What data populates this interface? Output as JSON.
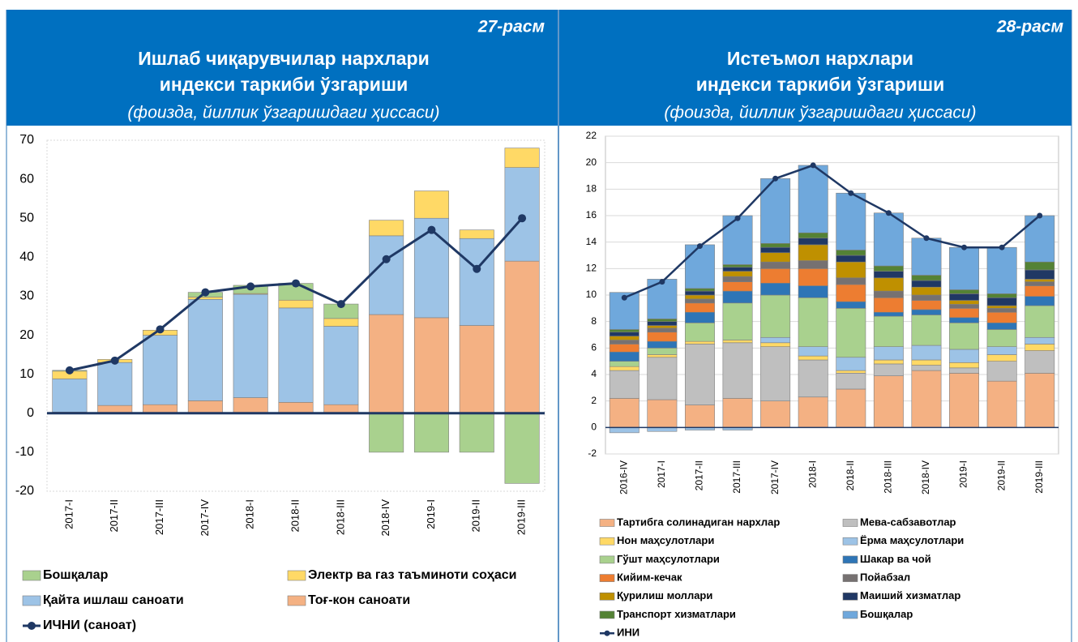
{
  "chart_data": [
    {
      "type": "bar",
      "stacked": true,
      "grid": false,
      "figure_label": "27-расм",
      "title": [
        "Ишлаб чиқарувчилар нархлари",
        "индекси таркиби ўзгариши"
      ],
      "subtitle": "(фоизда, йиллик ўзгаришдаги ҳиссаси)",
      "categories": [
        "2017-I",
        "2017-II",
        "2017-III",
        "2017-IV",
        "2018-I",
        "2018-II",
        "2018-III",
        "2018-IV",
        "2019-I",
        "2019-II",
        "2019-III"
      ],
      "ylim": [
        -20,
        70
      ],
      "yticks": [
        -20,
        -10,
        0,
        10,
        20,
        30,
        40,
        50,
        60,
        70
      ],
      "series": [
        {
          "name": "Тоғ-кон саноати",
          "color": "#f4b183",
          "values": [
            0.3,
            2,
            2.2,
            3.2,
            4,
            2.8,
            2.2,
            25.3,
            24.5,
            22.5,
            39
          ]
        },
        {
          "name": "Қайта ишлаш саноати",
          "color": "#9dc3e6",
          "values": [
            8.5,
            11,
            17.8,
            26,
            26.5,
            24.2,
            20.1,
            20.2,
            25.5,
            22.3,
            24
          ]
        },
        {
          "name": "Электр ва газ таъминоти соҳаси",
          "color": "#ffd966",
          "values": [
            2,
            0.8,
            1.3,
            0.6,
            0.2,
            2,
            2,
            4,
            7,
            2.2,
            5
          ]
        },
        {
          "name": "Бошқалар",
          "color": "#a9d18e",
          "values": [
            0.2,
            0,
            0,
            1.2,
            2.1,
            4.3,
            3.7,
            -10,
            -10,
            -10,
            -18
          ]
        }
      ],
      "line": {
        "name": "ИЧНИ (саноат)",
        "color": "#1f3864",
        "values": [
          11,
          13.5,
          21.5,
          31,
          32.5,
          33.3,
          28,
          39.5,
          47,
          37,
          50
        ]
      }
    },
    {
      "type": "bar",
      "stacked": true,
      "grid": true,
      "figure_label": "28-расм",
      "title": [
        "Истеъмол нархлари",
        "индекси таркиби ўзгариши"
      ],
      "subtitle": "(фоизда, йиллик ўзгаришдаги ҳиссаси)",
      "categories": [
        "2016-IV",
        "2017-I",
        "2017-II",
        "2017-III",
        "2017-IV",
        "2018-I",
        "2018-II",
        "2018-III",
        "2018-IV",
        "2019-I",
        "2019-II",
        "2019-III"
      ],
      "ylim": [
        -2,
        22
      ],
      "yticks": [
        -2,
        0,
        2,
        4,
        6,
        8,
        10,
        12,
        14,
        16,
        18,
        20,
        22
      ],
      "series": [
        {
          "name": "Тартибга солинадиган нархлар",
          "color": "#f4b183",
          "values": [
            2.2,
            2.1,
            1.7,
            2.2,
            2.0,
            2.3,
            2.9,
            3.9,
            4.3,
            4.1,
            3.5,
            4.1
          ]
        },
        {
          "name": "Мева-сабзавотлар",
          "color": "#bfbfbf",
          "values": [
            2.1,
            3.2,
            4.6,
            4.2,
            4.1,
            2.8,
            1.2,
            0.9,
            0.4,
            0.4,
            1.5,
            1.7
          ]
        },
        {
          "name": "Нон маҳсулотлари",
          "color": "#ffd966",
          "values": [
            0.3,
            0.2,
            0.2,
            0.2,
            0.3,
            0.3,
            0.2,
            0.3,
            0.4,
            0.4,
            0.5,
            0.5
          ]
        },
        {
          "name": "Ёрма маҳсулотлари",
          "color": "#9dc3e6",
          "values": [
            -0.4,
            -0.3,
            -0.2,
            -0.2,
            0.4,
            0.7,
            1.0,
            1.0,
            1.1,
            1.0,
            0.6,
            0.5
          ]
        },
        {
          "name": "Гўшт маҳсулотлари",
          "color": "#a9d18e",
          "values": [
            0.4,
            0.5,
            1.4,
            2.8,
            3.2,
            3.7,
            3.7,
            2.3,
            2.3,
            2.0,
            1.3,
            2.4
          ]
        },
        {
          "name": "Шакар ва чой",
          "color": "#2e75b6",
          "values": [
            0.7,
            0.5,
            0.8,
            0.9,
            0.9,
            0.9,
            0.5,
            0.3,
            0.4,
            0.4,
            0.5,
            0.7
          ]
        },
        {
          "name": "Кийим-кечак",
          "color": "#ed7d31",
          "values": [
            0.6,
            0.7,
            0.7,
            0.7,
            1.1,
            1.3,
            1.3,
            1.1,
            0.7,
            0.7,
            0.8,
            0.8
          ]
        },
        {
          "name": "Пойабзал",
          "color": "#767171",
          "values": [
            0.3,
            0.3,
            0.3,
            0.4,
            0.5,
            0.6,
            0.5,
            0.5,
            0.4,
            0.3,
            0.3,
            0.3
          ]
        },
        {
          "name": "Қурилиш моллари",
          "color": "#bf9000",
          "values": [
            0.3,
            0.2,
            0.3,
            0.4,
            0.7,
            1.2,
            1.2,
            1.0,
            0.6,
            0.3,
            0.2,
            0.2
          ]
        },
        {
          "name": "Маиший хизматлар",
          "color": "#203864",
          "values": [
            0.3,
            0.3,
            0.3,
            0.3,
            0.4,
            0.5,
            0.5,
            0.5,
            0.5,
            0.5,
            0.6,
            0.7
          ]
        },
        {
          "name": "Транспорт хизматлари",
          "color": "#548235",
          "values": [
            0.2,
            0.2,
            0.2,
            0.2,
            0.3,
            0.4,
            0.4,
            0.4,
            0.4,
            0.3,
            0.3,
            0.6
          ]
        },
        {
          "name": "Бошқалар",
          "color": "#6fa8dc",
          "values": [
            2.8,
            3.0,
            3.3,
            3.7,
            4.9,
            5.1,
            4.3,
            4.0,
            2.8,
            3.2,
            3.5,
            3.5
          ]
        }
      ],
      "line": {
        "name": "ИНИ",
        "color": "#1f3864",
        "values": [
          9.8,
          11.0,
          13.7,
          15.8,
          18.8,
          19.8,
          17.7,
          16.2,
          14.3,
          13.6,
          13.6,
          16.0
        ]
      }
    }
  ]
}
